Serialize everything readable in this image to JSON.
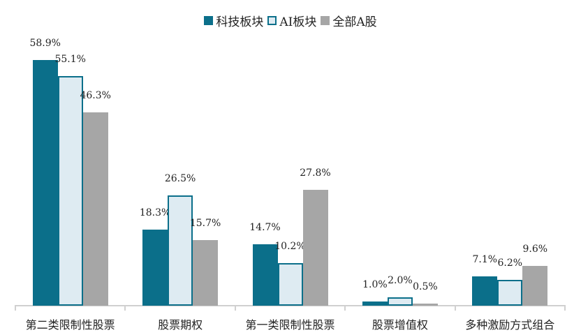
{
  "chart_data": {
    "type": "bar",
    "title": "",
    "xlabel": "",
    "ylabel": "",
    "ylim": [
      0,
      60
    ],
    "grid": false,
    "legend_position": "top",
    "categories": [
      "第二类限制性股票",
      "股票期权",
      "第一类限制性股票",
      "股票增值权",
      "多种激励方式组合"
    ],
    "series": [
      {
        "name": "科技板块",
        "color": "#0b6f8a",
        "values": [
          58.9,
          18.3,
          14.7,
          1.0,
          7.1
        ],
        "labels": [
          "58.9%",
          "18.3%",
          "14.7%",
          "1.0%",
          "7.1%"
        ]
      },
      {
        "name": "AI板块",
        "color": "#deebf2",
        "border": "#0b6f8a",
        "values": [
          55.1,
          26.5,
          10.2,
          2.0,
          6.2
        ],
        "labels": [
          "55.1%",
          "26.5%",
          "10.2%",
          "2.0%",
          "6.2%"
        ]
      },
      {
        "name": "全部A股",
        "color": "#a6a6a6",
        "values": [
          46.3,
          15.7,
          27.8,
          0.5,
          9.6
        ],
        "labels": [
          "46.3%",
          "15.7%",
          "27.8%",
          "0.5%",
          "9.6%"
        ]
      }
    ]
  }
}
